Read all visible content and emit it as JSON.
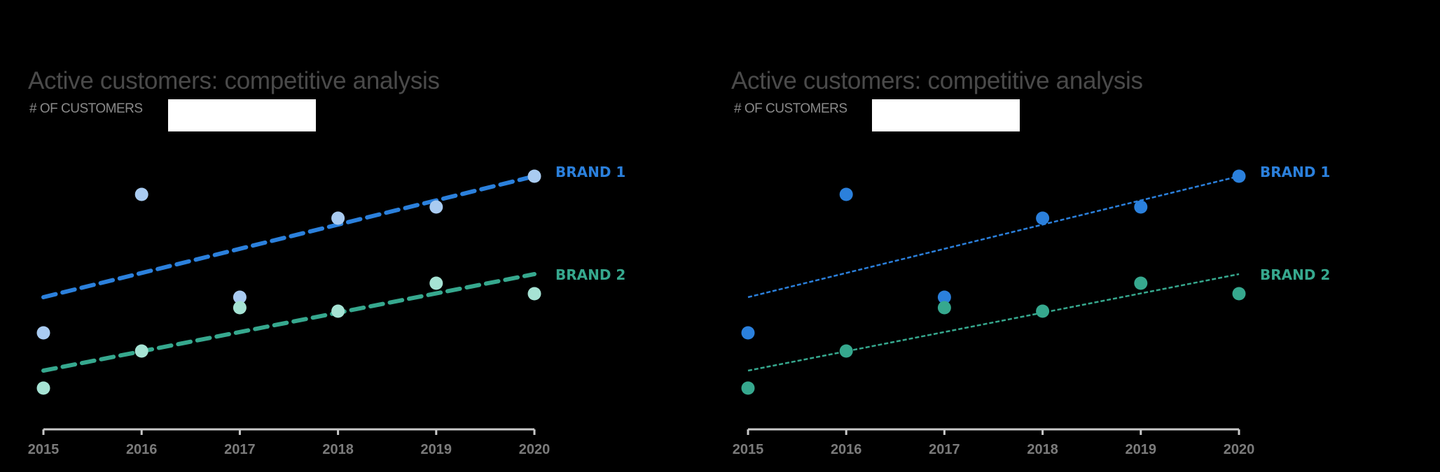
{
  "colors": {
    "background": "#000000",
    "title": "#4a4a4a",
    "subtitle": "#8a8a8a",
    "axis": "#c8c8c8",
    "tick_label": "#7b7b7b",
    "brand1_line": "#2b80dc",
    "brand2_line": "#36a88e",
    "brand1_point_light": "#a9cbf1",
    "brand2_point_light": "#a6e3d4",
    "brand1_point_dark": "#2b80dc",
    "brand2_point_dark": "#36a88e"
  },
  "left_chart": {
    "title": "Active customers: competitive analysis",
    "subtitle": "# OF CUSTOMERS",
    "label_brand1": "BRAND 1",
    "label_brand2": "BRAND 2",
    "years": [
      "2015",
      "2016",
      "2017",
      "2018",
      "2019",
      "2020"
    ]
  },
  "right_chart": {
    "title": "Active customers: competitive analysis",
    "subtitle": "# OF CUSTOMERS",
    "label_brand1": "BRAND 1",
    "label_brand2": "BRAND 2",
    "years": [
      "2015",
      "2016",
      "2017",
      "2018",
      "2019",
      "2020"
    ]
  },
  "chart_data": [
    {
      "type": "scatter",
      "title": "Active customers: competitive analysis",
      "subtitle": "# OF CUSTOMERS",
      "xlabel": "",
      "ylabel": "# of customers",
      "x": [
        2015,
        2016,
        2017,
        2018,
        2019,
        2020
      ],
      "y_axis_shown": false,
      "grid": false,
      "legend_position": "direct labels at right",
      "note": "No y-axis scale is shown; values are relative heights above the x-axis (px units).",
      "series": [
        {
          "name": "BRAND 1",
          "values": [
            138,
            336,
            189,
            302,
            318,
            362
          ],
          "marker_color": "#a9cbf1",
          "trendline": {
            "style": "thick dashed",
            "color": "#2b80dc",
            "start": 189,
            "end": 362
          }
        },
        {
          "name": "BRAND 2",
          "values": [
            59,
            112,
            174,
            169,
            209,
            194
          ],
          "marker_color": "#a6e3d4",
          "trendline": {
            "style": "thick dashed",
            "color": "#36a88e",
            "start": 84,
            "end": 222
          }
        }
      ]
    },
    {
      "type": "scatter",
      "title": "Active customers: competitive analysis",
      "subtitle": "# OF CUSTOMERS",
      "xlabel": "",
      "ylabel": "# of customers",
      "x": [
        2015,
        2016,
        2017,
        2018,
        2019,
        2020
      ],
      "y_axis_shown": false,
      "grid": false,
      "legend_position": "direct labels at right",
      "note": "No y-axis scale is shown; values are relative heights above the x-axis (px units).",
      "series": [
        {
          "name": "BRAND 1",
          "values": [
            138,
            336,
            189,
            302,
            318,
            362
          ],
          "marker_color": "#2b80dc",
          "trendline": {
            "style": "thin dashed",
            "color": "#2b80dc",
            "start": 189,
            "end": 362
          }
        },
        {
          "name": "BRAND 2",
          "values": [
            59,
            112,
            174,
            169,
            209,
            194
          ],
          "marker_color": "#36a88e",
          "trendline": {
            "style": "thin dashed",
            "color": "#36a88e",
            "start": 84,
            "end": 222
          }
        }
      ]
    }
  ]
}
